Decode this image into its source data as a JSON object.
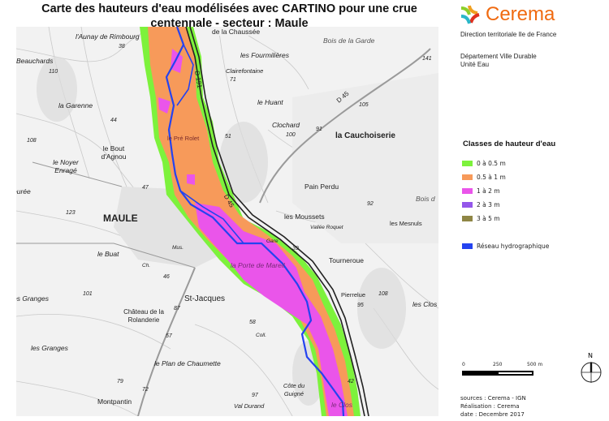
{
  "title": {
    "line1": "Carte des hauteurs d'eau modélisées avec CARTINO pour une crue",
    "line2": "centennale - secteur : Maule"
  },
  "logo": {
    "name": "Cerema"
  },
  "organisation": {
    "direction": "Direction territoriale Ile de France",
    "departement": "Département Ville Durable",
    "unite": "Unité Eau"
  },
  "legend": {
    "title": "Classes de hauteur d'eau",
    "classes": [
      {
        "label": "0 à 0.5 m",
        "color": "#7df23c"
      },
      {
        "label": "0.5 à 1 m",
        "color": "#f79a5a"
      },
      {
        "label": "1 à 2 m",
        "color": "#ea55ea"
      },
      {
        "label": "2 à 3 m",
        "color": "#9457ea"
      },
      {
        "label": "3 à 5 m",
        "color": "#8f8645"
      }
    ],
    "network": {
      "label": "Réseau hydrographique",
      "color": "#2443f0"
    }
  },
  "scale": {
    "ticks": [
      "0",
      "250",
      "500 m"
    ]
  },
  "north": {
    "label": "N"
  },
  "credits": {
    "sources": "sources :  Cerema - IGN",
    "realisation": "Réalisation : Cerema",
    "date": "date : Decembre 2017"
  },
  "map_labels": {
    "places": [
      "l'Aunay de Rimbourg",
      "Beauchards",
      "la Garenne",
      "le Bout d'Agnou",
      "le Noyer Enragé",
      "eurée",
      "MAULE",
      "le Buat",
      "es Granges",
      "Château de la Rolanderie",
      "St-Jacques",
      "les Granges",
      "le Plan de Chaumette",
      "Montpantin",
      "Val Durand",
      "Côte du Guigné",
      "le Clos",
      "la Porte de Mareil",
      "le Pré Rolet",
      "les Fourmilières",
      "Clairefontaine",
      "le Huant",
      "Clochard",
      "la Cauchoiserie",
      "Bois de la Garde",
      "Pain Perdu",
      "les Moussets",
      "Vallée Roquet",
      "les Mesnuls",
      "Tourneroue",
      "Pierrelue",
      "les Clos",
      "Bois d",
      "de la Chaussée",
      "Mus.",
      "Ch.",
      "Gare",
      "Coll."
    ],
    "roads": [
      "D 191",
      "D 45",
      "D 45"
    ],
    "elevations": [
      "38",
      "110",
      "44",
      "108",
      "123",
      "47",
      "46",
      "101",
      "87",
      "57",
      "79",
      "72",
      "97",
      "58",
      "71",
      "51",
      "100",
      "91",
      "105",
      "141",
      "92",
      "39",
      "108",
      "95",
      "42"
    ]
  }
}
